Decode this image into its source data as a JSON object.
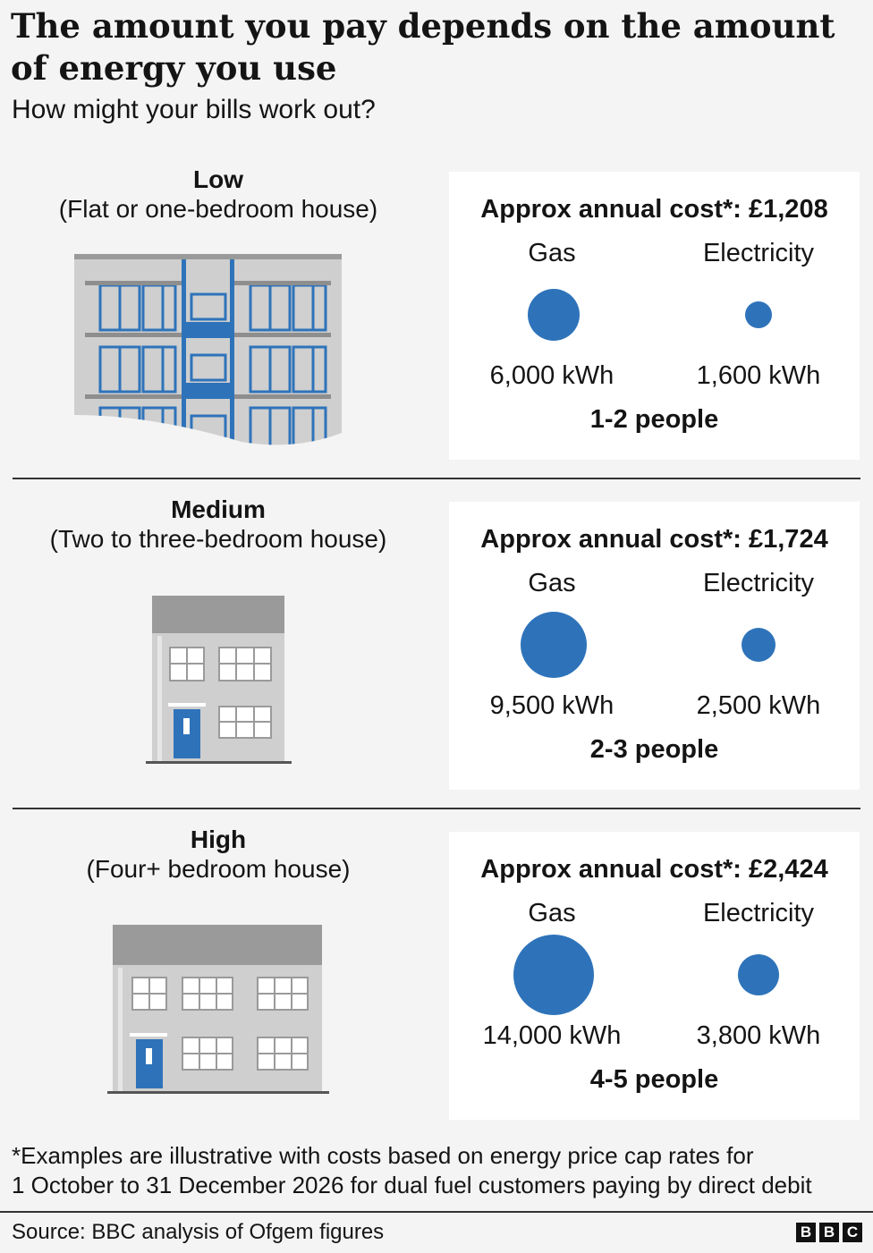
{
  "header": {
    "title": "The amount you pay depends on the amount of energy you use",
    "subtitle": "How might your bills work out?"
  },
  "chart_data": {
    "type": "bubble",
    "categories": [
      "Low",
      "Medium",
      "High"
    ],
    "descriptions": [
      "(Flat or one-bedroom house)",
      "(Two to three-bedroom house)",
      "(Four+ bedroom house)"
    ],
    "annual_cost": [
      "Approx annual cost*: £1,208",
      "Approx annual cost*: £1,724",
      "Approx annual cost*: £2,424"
    ],
    "people": [
      "1-2 people",
      "2-3 people",
      "4-5 people"
    ],
    "series": [
      {
        "name": "Gas",
        "unit": "kWh",
        "values": [
          6000,
          9500,
          14000
        ],
        "labels": [
          "6,000 kWh",
          "9,500 kWh",
          "14,000 kWh"
        ]
      },
      {
        "name": "Electricity",
        "unit": "kWh",
        "values": [
          1600,
          2500,
          3800
        ],
        "labels": [
          "1,600 kWh",
          "2,500 kWh",
          "3,800 kWh"
        ]
      }
    ],
    "bubble_color": "#2e73ba"
  },
  "footnote": {
    "line1": "*Examples are illustrative with costs based on energy price cap rates for",
    "line2": "1 October to 31 December 2026 for dual fuel customers paying by direct debit"
  },
  "source": "Source: BBC analysis of Ofgem figures",
  "logo": [
    "B",
    "B",
    "C"
  ],
  "colors": {
    "accent": "#2e73ba",
    "building": "#cfcfcf",
    "roof": "#9a9a9a"
  }
}
